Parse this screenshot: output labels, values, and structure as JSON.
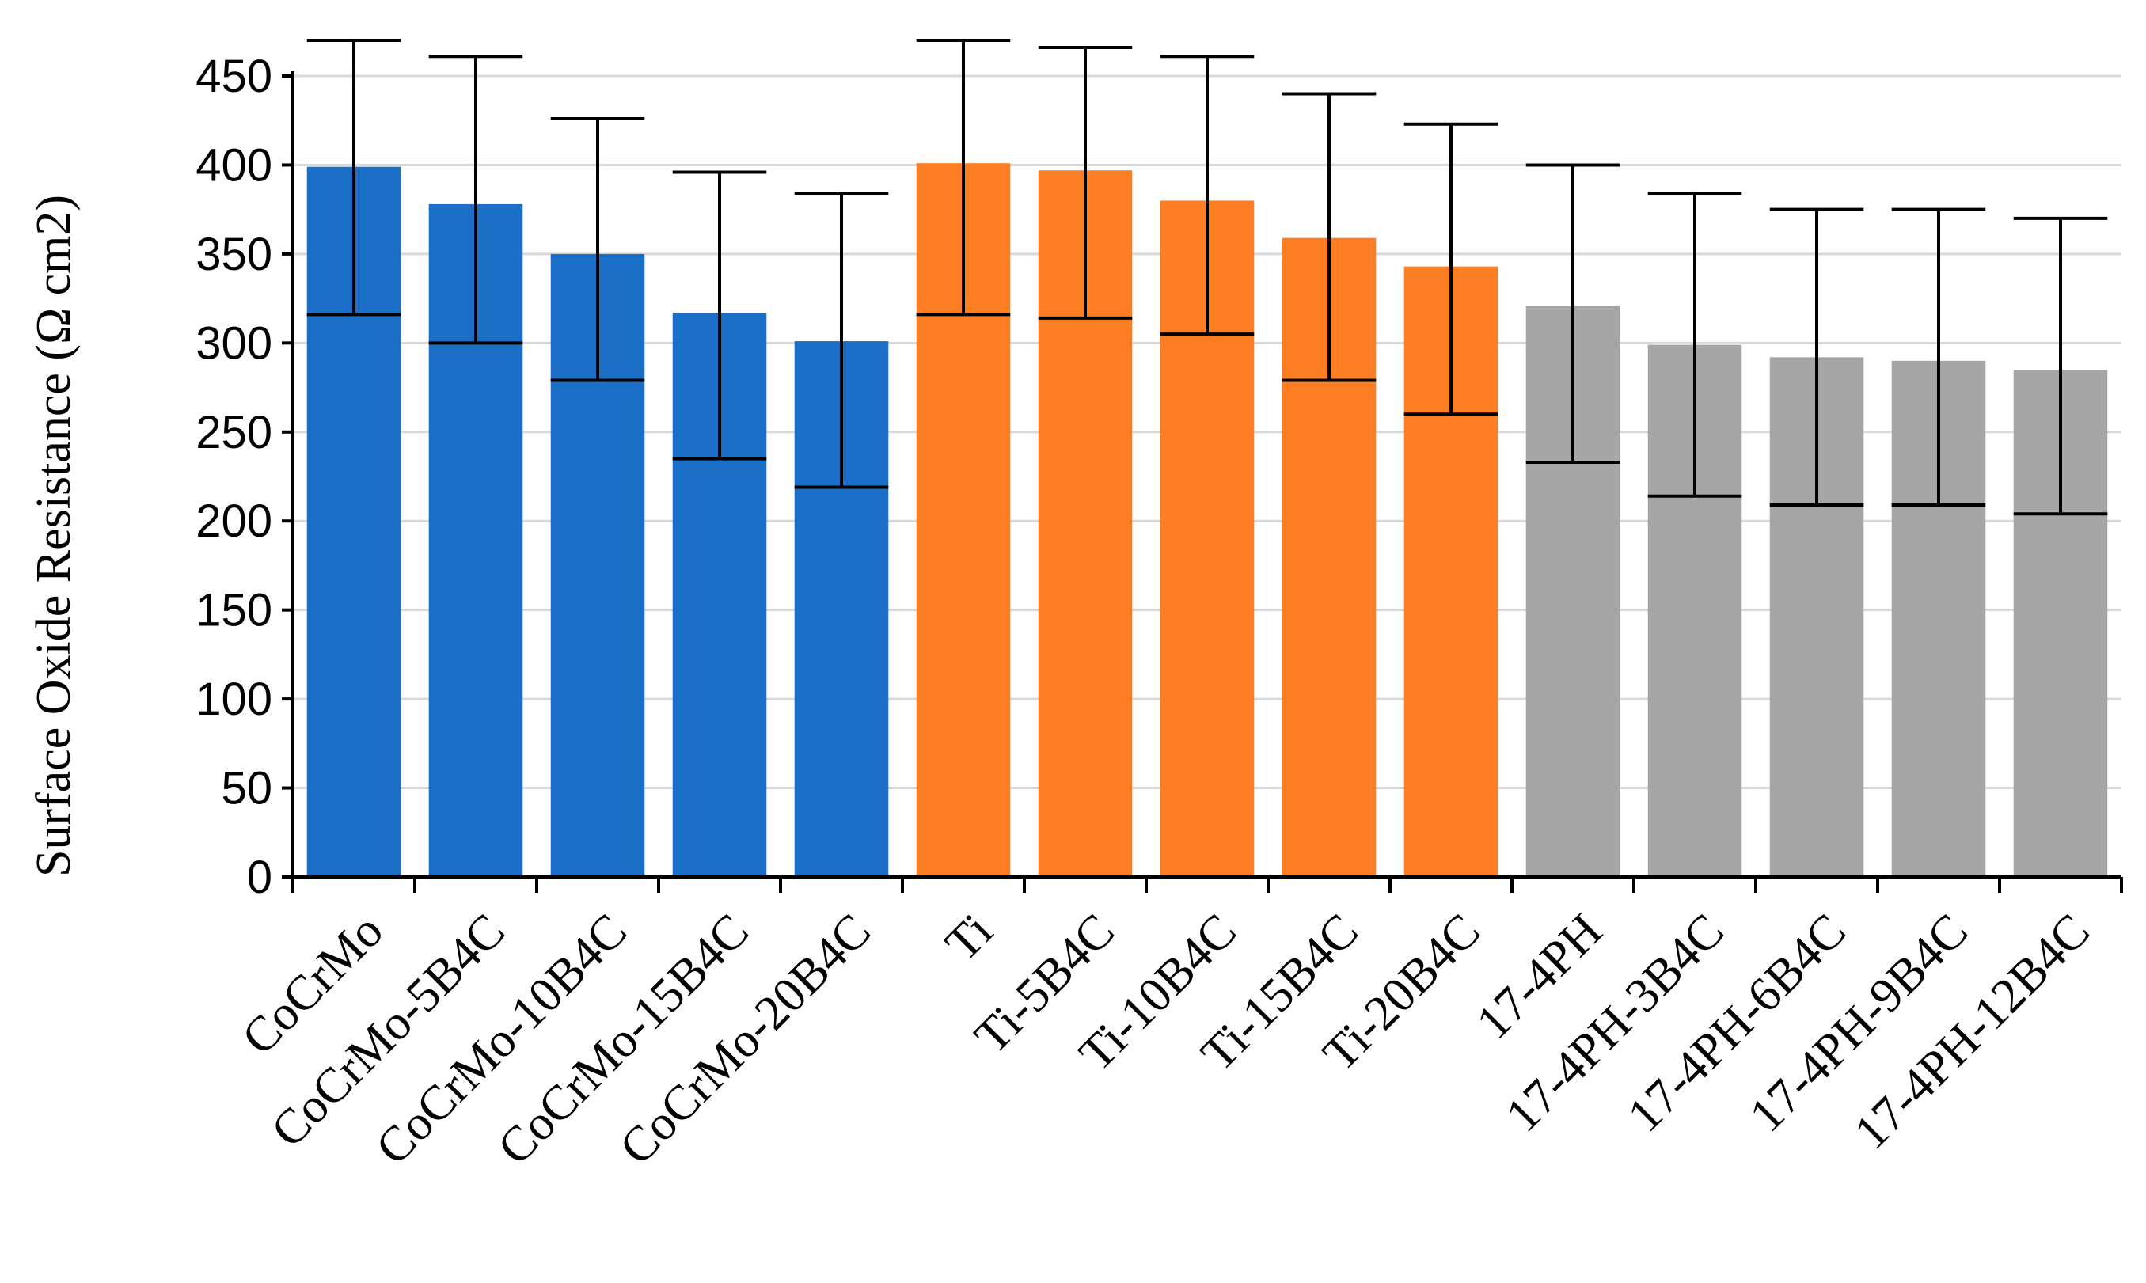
{
  "chart_data": {
    "type": "bar",
    "title": "",
    "xlabel": "",
    "ylabel": "Surface Oxide Resistance (Ω cm2)",
    "ylim": [
      0,
      450
    ],
    "yticks": [
      0,
      50,
      100,
      150,
      200,
      250,
      300,
      350,
      400,
      450
    ],
    "grid": true,
    "categories": [
      "CoCrMo",
      "CoCrMo-5B4C",
      "CoCrMo-10B4C",
      "CoCrMo-15B4C",
      "CoCrMo-20B4C",
      "Ti",
      "Ti-5B4C",
      "Ti-10B4C",
      "Ti-15B4C",
      "Ti-20B4C",
      "17-4PH",
      "17-4PH-3B4C",
      "17-4PH-6B4C",
      "17-4PH-9B4C",
      "17-4PH-12B4C"
    ],
    "values": [
      399,
      378,
      350,
      317,
      301,
      401,
      397,
      380,
      359,
      343,
      321,
      299,
      292,
      290,
      285
    ],
    "error_low": [
      316,
      300,
      279,
      235,
      219,
      316,
      314,
      305,
      279,
      260,
      233,
      214,
      209,
      209,
      204
    ],
    "error_high": [
      470,
      461,
      426,
      396,
      384,
      470,
      466,
      461,
      440,
      423,
      400,
      384,
      375,
      375,
      370
    ],
    "colors": [
      "#1b6fc7",
      "#1b6fc7",
      "#1b6fc7",
      "#1b6fc7",
      "#1b6fc7",
      "#fd7e23",
      "#fd7e23",
      "#fd7e23",
      "#fd7e23",
      "#fd7e23",
      "#a6a6a6",
      "#a6a6a6",
      "#a6a6a6",
      "#a6a6a6",
      "#a6a6a6"
    ]
  }
}
